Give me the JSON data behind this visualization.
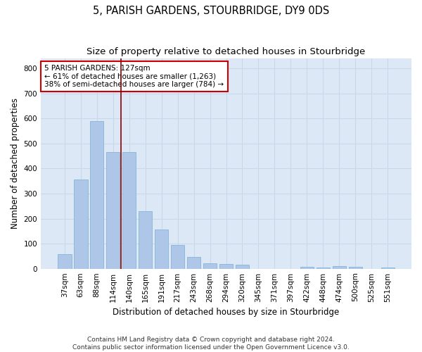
{
  "title": "5, PARISH GARDENS, STOURBRIDGE, DY9 0DS",
  "subtitle": "Size of property relative to detached houses in Stourbridge",
  "xlabel": "Distribution of detached houses by size in Stourbridge",
  "ylabel": "Number of detached properties",
  "categories": [
    "37sqm",
    "63sqm",
    "88sqm",
    "114sqm",
    "140sqm",
    "165sqm",
    "191sqm",
    "217sqm",
    "243sqm",
    "268sqm",
    "294sqm",
    "320sqm",
    "345sqm",
    "371sqm",
    "397sqm",
    "422sqm",
    "448sqm",
    "474sqm",
    "500sqm",
    "525sqm",
    "551sqm"
  ],
  "values": [
    58,
    357,
    590,
    467,
    467,
    230,
    157,
    95,
    47,
    22,
    20,
    15,
    0,
    0,
    0,
    8,
    5,
    10,
    8,
    0,
    5
  ],
  "bar_color": "#aec6e8",
  "bar_edge_color": "#7aafd4",
  "grid_color": "#c8d8ea",
  "background_color": "#dce8f5",
  "vline_color": "#8b0000",
  "annotation_text": "5 PARISH GARDENS: 127sqm\n← 61% of detached houses are smaller (1,263)\n38% of semi-detached houses are larger (784) →",
  "annotation_box_color": "#ffffff",
  "annotation_box_edge": "#cc0000",
  "ylim": [
    0,
    840
  ],
  "yticks": [
    0,
    100,
    200,
    300,
    400,
    500,
    600,
    700,
    800
  ],
  "footer": "Contains HM Land Registry data © Crown copyright and database right 2024.\nContains public sector information licensed under the Open Government Licence v3.0.",
  "title_fontsize": 10.5,
  "subtitle_fontsize": 9.5,
  "axis_label_fontsize": 8.5,
  "tick_fontsize": 7.5,
  "annotation_fontsize": 7.5,
  "footer_fontsize": 6.5
}
